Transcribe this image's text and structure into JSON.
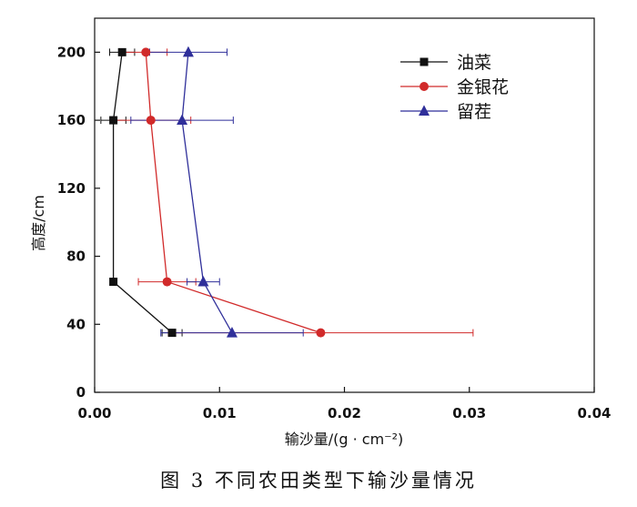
{
  "chart_data": {
    "type": "line",
    "title": "",
    "xlabel": "输沙量/(g · cm⁻²)",
    "ylabel": "高度/cm",
    "xlim": [
      0,
      0.04
    ],
    "ylim": [
      0,
      220
    ],
    "x_ticks": [
      0,
      0.01,
      0.02,
      0.03,
      0.04
    ],
    "x_tick_labels": [
      "0.00",
      "0.01",
      "0.02",
      "0.03",
      "0.04"
    ],
    "y_ticks": [
      0,
      40,
      80,
      120,
      160,
      200
    ],
    "y_tick_labels": [
      "0",
      "40",
      "80",
      "120",
      "160",
      "200"
    ],
    "legend_position": "top-right",
    "series": [
      {
        "name": "油菜",
        "color": "#111111",
        "marker": "square",
        "points": [
          {
            "x": 0.0022,
            "y": 200,
            "err": 0.001
          },
          {
            "x": 0.0015,
            "y": 160,
            "err": 0.001
          },
          {
            "x": 0.0015,
            "y": 65,
            "err": 0.0002
          },
          {
            "x": 0.0062,
            "y": 35,
            "err": 0.0008
          }
        ]
      },
      {
        "name": "金银花",
        "color": "#d12a2a",
        "marker": "circle",
        "points": [
          {
            "x": 0.0041,
            "y": 200,
            "err": 0.0017
          },
          {
            "x": 0.0045,
            "y": 160,
            "err": 0.0032
          },
          {
            "x": 0.0058,
            "y": 65,
            "err": 0.0023
          },
          {
            "x": 0.0181,
            "y": 35,
            "err": 0.0122
          }
        ]
      },
      {
        "name": "留茬",
        "color": "#2f2f9a",
        "marker": "triangle",
        "points": [
          {
            "x": 0.0075,
            "y": 200,
            "err": 0.0031
          },
          {
            "x": 0.007,
            "y": 160,
            "err": 0.0041
          },
          {
            "x": 0.0087,
            "y": 65,
            "err": 0.0013
          },
          {
            "x": 0.011,
            "y": 35,
            "err": 0.0057
          }
        ]
      }
    ]
  },
  "caption": "图 3 不同农田类型下输沙量情况"
}
